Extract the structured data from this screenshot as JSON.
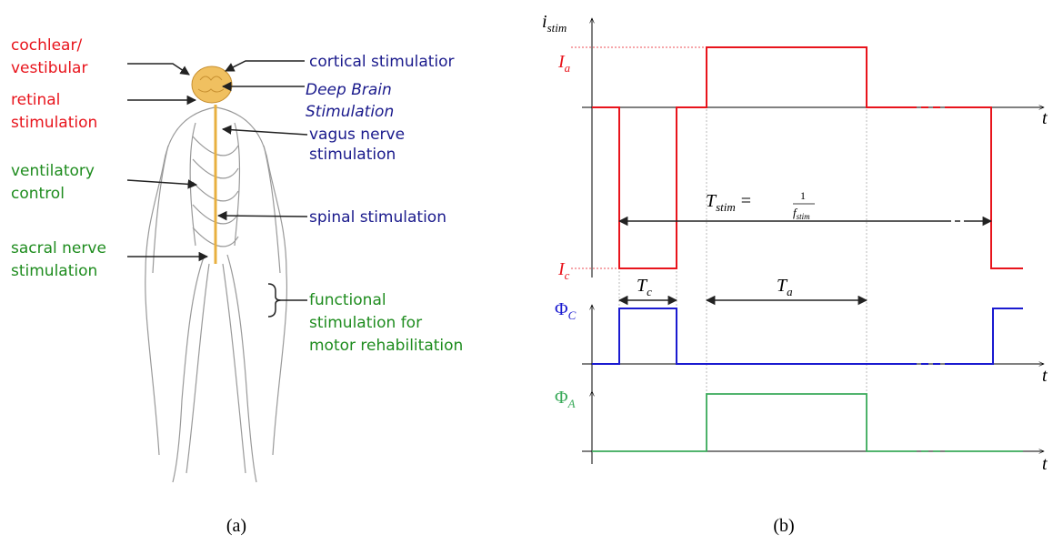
{
  "panel_a": {
    "labels": [
      {
        "lines": [
          "cochlear/",
          "vestibular"
        ]
      },
      {
        "lines": [
          "retinal",
          "stimulation"
        ]
      },
      {
        "lines": [
          "ventilatory",
          "control"
        ]
      },
      {
        "lines": [
          "sacral nerve",
          "stimulation"
        ]
      },
      {
        "lines": [
          "cortical stimulatior"
        ]
      },
      {
        "lines": [
          "Deep Brain",
          "Stimulation"
        ]
      },
      {
        "lines": [
          "vagus nerve",
          "stimulation"
        ]
      },
      {
        "lines": [
          "spinal stimulation"
        ]
      },
      {
        "lines": [
          "functional",
          "stimulation for",
          "motor rehabilitation"
        ]
      }
    ]
  },
  "panel_b": {
    "current_axis": {
      "main": "i",
      "sub": "stim"
    },
    "anodic_level": {
      "main": "I",
      "sub": "a"
    },
    "cathodic_level": {
      "main": "I",
      "sub": "c"
    },
    "time_labels": [
      "t",
      "t",
      "t"
    ],
    "period": {
      "main": "T",
      "sub": "stim",
      "eq": "=",
      "num": "1",
      "den": "f",
      "den_sub": "stim"
    },
    "cathodic_width": {
      "main": "T",
      "sub": "c"
    },
    "anodic_width": {
      "main": "T",
      "sub": "a"
    },
    "phase_c": {
      "main": "Φ",
      "sub": "C"
    },
    "phase_a": {
      "main": "Φ",
      "sub": "A"
    }
  },
  "captions": [
    "(a)",
    "(b)"
  ]
}
